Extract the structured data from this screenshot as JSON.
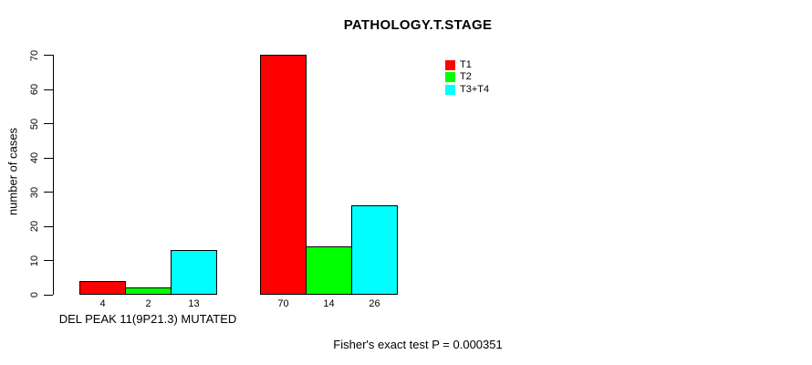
{
  "chart_data": {
    "type": "bar",
    "title": "PATHOLOGY.T.STAGE",
    "ylabel": "number of cases",
    "xlabel": "",
    "ylim": [
      0,
      70
    ],
    "yticks": [
      0,
      10,
      20,
      30,
      40,
      50,
      60,
      70
    ],
    "grid": false,
    "categories": [
      "DEL PEAK 11(9P21.3) MUTATED",
      ""
    ],
    "series": [
      {
        "name": "T1",
        "color": "#FF0000",
        "values": [
          4,
          70
        ]
      },
      {
        "name": "T2",
        "color": "#00FF00",
        "values": [
          2,
          14
        ]
      },
      {
        "name": "T3+T4",
        "color": "#00FFFF",
        "values": [
          13,
          26
        ]
      }
    ],
    "bar_value_labels": [
      [
        4,
        2,
        13
      ],
      [
        70,
        14,
        26
      ]
    ],
    "bar_border_color": "#000000",
    "axis_color": "#000000",
    "legend": {
      "entries": [
        "T1",
        "T2",
        "T3+T4"
      ],
      "position": "inside-top-right"
    },
    "annotation": "Fisher's exact test P = 0.000351"
  }
}
